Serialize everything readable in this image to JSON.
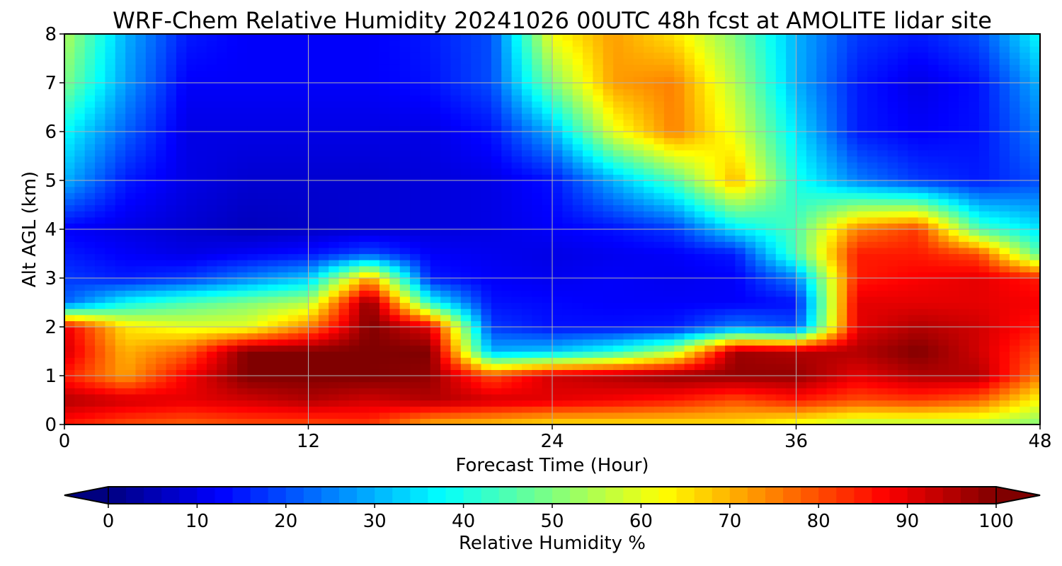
{
  "chart_data": {
    "type": "heatmap",
    "title": "WRF-Chem Relative Humidity 20241026 00UTC 48h fcst at AMOLITE lidar site",
    "xlabel": "Forecast Time (Hour)",
    "ylabel": "Alt AGL (km)",
    "xlim": [
      0,
      48
    ],
    "ylim": [
      0,
      8
    ],
    "x_ticks": [
      "0",
      "12",
      "24",
      "36",
      "48"
    ],
    "y_ticks": [
      "0",
      "1",
      "2",
      "3",
      "4",
      "5",
      "6",
      "7",
      "8"
    ],
    "grid": true,
    "colormap": "jet",
    "colorbar": {
      "label": "Relative Humidity %",
      "range": [
        0,
        100
      ],
      "ticks": [
        "0",
        "10",
        "20",
        "30",
        "40",
        "50",
        "60",
        "70",
        "80",
        "90",
        "100"
      ],
      "extend": "both",
      "orientation": "horizontal"
    },
    "x_hours": [
      0,
      3,
      6,
      9,
      12,
      15,
      18,
      21,
      24,
      27,
      30,
      33,
      36,
      39,
      42,
      45,
      48
    ],
    "altitudes_km": [
      0,
      0.5,
      1,
      1.5,
      2,
      2.5,
      3,
      3.5,
      4,
      5,
      6,
      7,
      8
    ],
    "rh_percent": [
      [
        85,
        80,
        78,
        80,
        80,
        82,
        70,
        68,
        65,
        65,
        65,
        65,
        60,
        55,
        55,
        55,
        50
      ],
      [
        95,
        92,
        90,
        92,
        95,
        92,
        95,
        92,
        90,
        88,
        85,
        80,
        85,
        80,
        82,
        78,
        62
      ],
      [
        85,
        72,
        88,
        100,
        100,
        100,
        98,
        80,
        92,
        95,
        98,
        98,
        98,
        90,
        95,
        95,
        75
      ],
      [
        92,
        70,
        78,
        100,
        100,
        100,
        100,
        30,
        32,
        40,
        55,
        97,
        95,
        95,
        100,
        92,
        80
      ],
      [
        90,
        65,
        60,
        60,
        75,
        100,
        90,
        18,
        14,
        14,
        15,
        25,
        20,
        90,
        95,
        92,
        85
      ],
      [
        22,
        38,
        45,
        50,
        55,
        100,
        40,
        14,
        13,
        12,
        12,
        12,
        14,
        90,
        90,
        90,
        88
      ],
      [
        18,
        15,
        18,
        25,
        32,
        72,
        15,
        12,
        11,
        12,
        11,
        12,
        25,
        85,
        88,
        90,
        85
      ],
      [
        15,
        12,
        10,
        12,
        14,
        20,
        12,
        11,
        10,
        11,
        12,
        15,
        45,
        85,
        85,
        80,
        45
      ],
      [
        12,
        10,
        8,
        6,
        7,
        8,
        9,
        10,
        12,
        14,
        18,
        35,
        45,
        75,
        82,
        45,
        35
      ],
      [
        30,
        15,
        10,
        8,
        8,
        8,
        9,
        10,
        14,
        30,
        45,
        70,
        40,
        25,
        18,
        15,
        20
      ],
      [
        38,
        22,
        10,
        10,
        10,
        10,
        10,
        14,
        30,
        60,
        75,
        60,
        35,
        15,
        12,
        14,
        25
      ],
      [
        50,
        28,
        12,
        12,
        12,
        12,
        14,
        20,
        50,
        72,
        75,
        55,
        30,
        15,
        10,
        14,
        30
      ],
      [
        55,
        30,
        15,
        12,
        12,
        12,
        15,
        20,
        62,
        72,
        65,
        50,
        30,
        18,
        15,
        20,
        38
      ]
    ]
  }
}
